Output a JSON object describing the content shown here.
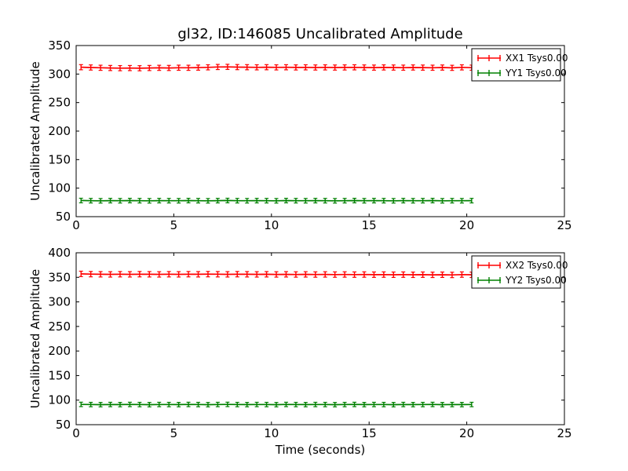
{
  "figure": {
    "title": "gl32, ID:146085 Uncalibrated Amplitude",
    "background_color": "#ffffff",
    "axes_color": "#000000"
  },
  "chart_data": [
    {
      "type": "line",
      "subtype": "errorbar",
      "title": "",
      "xlabel": "",
      "ylabel": "Uncalibrated Amplitude",
      "xlim": [
        0,
        25
      ],
      "ylim": [
        50,
        350
      ],
      "xticks": [
        0,
        5,
        10,
        15,
        20,
        25
      ],
      "yticks": [
        50,
        100,
        150,
        200,
        250,
        300,
        350
      ],
      "grid": false,
      "legend_position": "upper right",
      "x": [
        0.25,
        0.75,
        1.25,
        1.75,
        2.25,
        2.75,
        3.25,
        3.75,
        4.25,
        4.75,
        5.25,
        5.75,
        6.25,
        6.75,
        7.25,
        7.75,
        8.25,
        8.75,
        9.25,
        9.75,
        10.25,
        10.75,
        11.25,
        11.75,
        12.25,
        12.75,
        13.25,
        13.75,
        14.25,
        14.75,
        15.25,
        15.75,
        16.25,
        16.75,
        17.25,
        17.75,
        18.25,
        18.75,
        19.25,
        19.75,
        20.25
      ],
      "series": [
        {
          "name": "XX1 Tsys0.00",
          "color": "#ff0000",
          "yerr": 4.5,
          "values": [
            312.0,
            311.5,
            311.0,
            310.6,
            310.3,
            310.5,
            310.2,
            310.6,
            310.9,
            310.7,
            311.1,
            311.0,
            311.3,
            311.8,
            312.4,
            312.6,
            312.2,
            312.0,
            311.8,
            312.0,
            311.7,
            311.9,
            311.6,
            311.8,
            311.5,
            311.7,
            311.4,
            311.6,
            311.8,
            311.5,
            311.3,
            311.6,
            311.4,
            311.2,
            311.5,
            311.3,
            311.1,
            311.4,
            310.9,
            311.7,
            311.2
          ]
        },
        {
          "name": "YY1 Tsys0.00",
          "color": "#008000",
          "yerr": 4.0,
          "values": [
            78.3,
            78.0,
            77.8,
            78.1,
            77.9,
            78.2,
            78.0,
            77.8,
            78.1,
            78.0,
            77.9,
            78.2,
            78.0,
            77.8,
            78.1,
            78.3,
            78.0,
            77.9,
            78.1,
            78.0,
            77.8,
            78.2,
            78.0,
            77.9,
            78.1,
            78.0,
            77.8,
            78.0,
            78.2,
            77.9,
            78.1,
            78.0,
            77.8,
            78.1,
            77.9,
            78.0,
            78.2,
            77.8,
            78.0,
            77.9,
            78.1
          ]
        }
      ]
    },
    {
      "type": "line",
      "subtype": "errorbar",
      "title": "",
      "xlabel": "Time (seconds)",
      "ylabel": "Uncalibrated Amplitude",
      "xlim": [
        0,
        25
      ],
      "ylim": [
        50,
        400
      ],
      "xticks": [
        0,
        5,
        10,
        15,
        20,
        25
      ],
      "yticks": [
        50,
        100,
        150,
        200,
        250,
        300,
        350,
        400
      ],
      "grid": false,
      "legend_position": "upper right",
      "x": [
        0.25,
        0.75,
        1.25,
        1.75,
        2.25,
        2.75,
        3.25,
        3.75,
        4.25,
        4.75,
        5.25,
        5.75,
        6.25,
        6.75,
        7.25,
        7.75,
        8.25,
        8.75,
        9.25,
        9.75,
        10.25,
        10.75,
        11.25,
        11.75,
        12.25,
        12.75,
        13.25,
        13.75,
        14.25,
        14.75,
        15.25,
        15.75,
        16.25,
        16.75,
        17.25,
        17.75,
        18.25,
        18.75,
        19.25,
        19.75,
        20.25
      ],
      "series": [
        {
          "name": "XX2 Tsys0.00",
          "color": "#ff0000",
          "yerr": 5.5,
          "values": [
            357.0,
            356.5,
            356.2,
            356.0,
            356.3,
            356.1,
            356.4,
            356.2,
            356.0,
            356.3,
            356.1,
            356.4,
            356.2,
            356.5,
            356.3,
            356.1,
            356.4,
            356.2,
            356.0,
            356.2,
            355.9,
            356.1,
            355.8,
            356.0,
            355.7,
            355.9,
            355.6,
            355.8,
            355.5,
            355.7,
            355.4,
            355.6,
            355.3,
            355.5,
            355.2,
            355.4,
            355.1,
            355.3,
            354.9,
            355.6,
            355.2
          ]
        },
        {
          "name": "YY2 Tsys0.00",
          "color": "#008000",
          "yerr": 4.5,
          "values": [
            91.3,
            91.0,
            90.8,
            91.1,
            90.9,
            91.2,
            91.0,
            90.8,
            91.1,
            91.0,
            90.9,
            91.2,
            91.0,
            90.8,
            91.1,
            91.3,
            91.0,
            90.9,
            91.1,
            91.0,
            90.8,
            91.2,
            91.0,
            90.9,
            91.1,
            91.0,
            90.8,
            91.0,
            91.2,
            90.9,
            91.1,
            91.0,
            90.8,
            91.1,
            90.9,
            91.0,
            91.2,
            90.8,
            91.0,
            90.9,
            91.1
          ]
        }
      ]
    }
  ]
}
